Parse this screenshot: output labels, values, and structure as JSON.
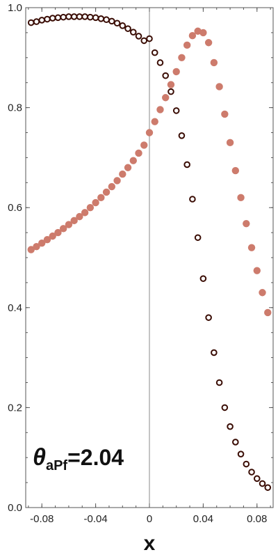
{
  "chart_data": {
    "type": "scatter",
    "title": "",
    "xlabel": "x",
    "ylabel": "",
    "xlim": [
      -0.092,
      0.092
    ],
    "ylim": [
      0.0,
      1.0
    ],
    "x_ticks": [
      -0.08,
      -0.04,
      0,
      0.04,
      0.08
    ],
    "x_tick_labels": [
      "-0.08",
      "-0.04",
      "0",
      "0.04",
      "0.08"
    ],
    "y_ticks": [
      0.0,
      0.2,
      0.4,
      0.6,
      0.8,
      1.0
    ],
    "y_tick_labels": [
      "0.0",
      "0.2",
      "0.4",
      "0.6",
      "0.8",
      "1.0"
    ],
    "grid": false,
    "annotation": {
      "symbol": "θ",
      "subscript": "aPf",
      "value_text": "=2.04"
    },
    "colors": {
      "filled_series": "#cd7b6c",
      "open_series": "#3a0d05",
      "axis": "#555555",
      "zero_line": "#888888"
    },
    "series": [
      {
        "marker": "filled",
        "x": [
          -0.088,
          -0.084,
          -0.08,
          -0.076,
          -0.072,
          -0.068,
          -0.064,
          -0.06,
          -0.056,
          -0.052,
          -0.048,
          -0.044,
          -0.04,
          -0.036,
          -0.032,
          -0.028,
          -0.024,
          -0.02,
          -0.016,
          -0.012,
          -0.008,
          -0.004,
          0.0,
          0.004,
          0.008,
          0.012,
          0.016,
          0.02,
          0.024,
          0.028,
          0.032,
          0.036,
          0.04,
          0.044,
          0.048,
          0.052,
          0.056,
          0.06,
          0.064,
          0.068,
          0.072,
          0.076,
          0.08,
          0.084,
          0.088
        ],
        "y": [
          0.516,
          0.522,
          0.529,
          0.536,
          0.543,
          0.55,
          0.558,
          0.566,
          0.574,
          0.582,
          0.59,
          0.6,
          0.61,
          0.62,
          0.631,
          0.642,
          0.654,
          0.667,
          0.68,
          0.694,
          0.709,
          0.725,
          0.75,
          0.772,
          0.796,
          0.82,
          0.846,
          0.872,
          0.9,
          0.925,
          0.944,
          0.953,
          0.95,
          0.93,
          0.89,
          0.842,
          0.787,
          0.73,
          0.674,
          0.62,
          0.568,
          0.52,
          0.474,
          0.43,
          0.39
        ]
      },
      {
        "marker": "open",
        "x": [
          -0.088,
          -0.084,
          -0.08,
          -0.076,
          -0.072,
          -0.068,
          -0.064,
          -0.06,
          -0.056,
          -0.052,
          -0.048,
          -0.044,
          -0.04,
          -0.036,
          -0.032,
          -0.028,
          -0.024,
          -0.02,
          -0.016,
          -0.012,
          -0.008,
          -0.004,
          0.0,
          0.004,
          0.008,
          0.012,
          0.016,
          0.02,
          0.024,
          0.028,
          0.032,
          0.036,
          0.04,
          0.044,
          0.048,
          0.052,
          0.056,
          0.06,
          0.064,
          0.068,
          0.072,
          0.076,
          0.08,
          0.084,
          0.088
        ],
        "y": [
          0.97,
          0.972,
          0.975,
          0.977,
          0.979,
          0.98,
          0.981,
          0.982,
          0.982,
          0.982,
          0.982,
          0.981,
          0.98,
          0.978,
          0.976,
          0.973,
          0.969,
          0.964,
          0.958,
          0.951,
          0.943,
          0.934,
          0.938,
          0.91,
          0.89,
          0.864,
          0.832,
          0.794,
          0.744,
          0.686,
          0.617,
          0.54,
          0.458,
          0.38,
          0.31,
          0.25,
          0.2,
          0.162,
          0.131,
          0.107,
          0.087,
          0.071,
          0.058,
          0.048,
          0.04
        ]
      }
    ]
  }
}
